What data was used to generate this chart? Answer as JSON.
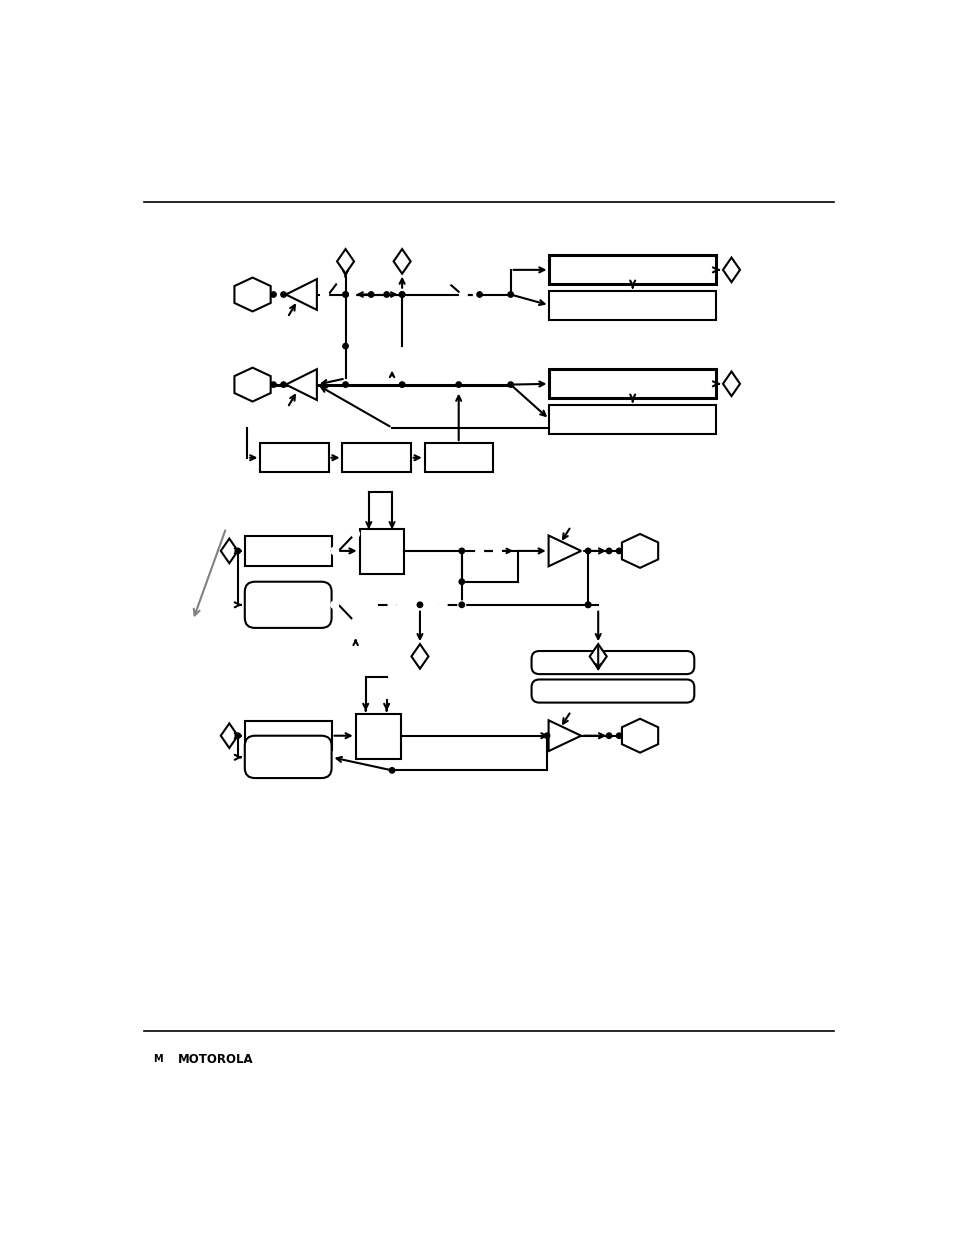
{
  "bg_color": "#ffffff",
  "line_color": "#000000",
  "page_width": 9.54,
  "page_height": 12.35
}
